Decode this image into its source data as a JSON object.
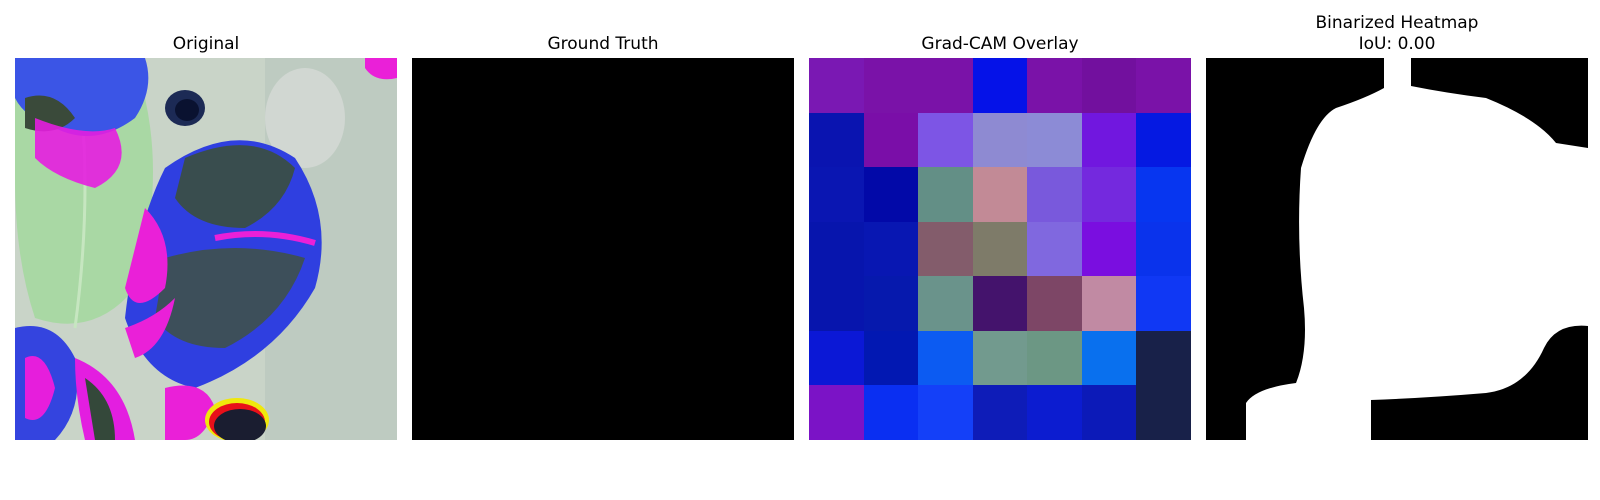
{
  "panels": {
    "original": {
      "title": "Original"
    },
    "ground_truth": {
      "title": "Ground Truth"
    },
    "gradcam": {
      "title": "Grad-CAM Overlay",
      "cells": [
        "#7a18b3",
        "#7a12a8",
        "#7a12a8",
        "#0512e8",
        "#7a12a8",
        "#72109e",
        "#7a12a8",
        "#0a14b0",
        "#7a0ea8",
        "#7d55e5",
        "#8e8ad2",
        "#8c8bd6",
        "#7117df",
        "#0519e2",
        "#0a16b2",
        "#0209a8",
        "#638f86",
        "#c28a96",
        "#7959dc",
        "#7429de",
        "#0736f0",
        "#0715ad",
        "#0817b2",
        "#835c6b",
        "#7e7b69",
        "#8068df",
        "#7a0ee0",
        "#0a33ec",
        "#0715ad",
        "#0619ad",
        "#6a938b",
        "#44136c",
        "#7d4666",
        "#c18aa3",
        "#1038f4",
        "#0b18d6",
        "#0218b2",
        "#0c5bf2",
        "#729a8e",
        "#6c9784",
        "#0970ee",
        "#182149",
        "#7b13c6",
        "#0a2ff2",
        "#1440f8",
        "#0e1cb8",
        "#0c1cd0",
        "#0c1ab8",
        "#182149"
      ]
    },
    "binarized": {
      "title_line1": "Binarized Heatmap",
      "title_line2": "IoU: 0.00"
    }
  }
}
